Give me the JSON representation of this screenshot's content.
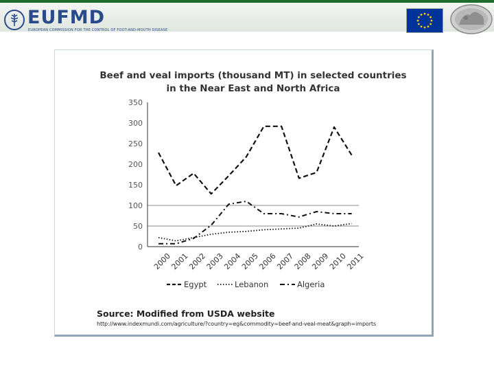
{
  "header": {
    "brand": "EUFMD",
    "brand_subtitle": "EUROPEAN COMMISSION FOR THE CONTROL OF FOOT-AND-MOUTH DISEASE",
    "logo_icon": "fao-wheat-emblem-icon",
    "flag_icon": "eu-flag-icon",
    "coin_icon": "ancient-coin-icon",
    "accent_color": "#1f6b2b",
    "brand_color": "#2a4b8a"
  },
  "chart_data": {
    "type": "line",
    "title": "Beef and veal imports (thousand MT) in selected countries",
    "subtitle": "in the Near East and North Africa",
    "xlabel": "",
    "ylabel": "",
    "categories": [
      "2000",
      "2001",
      "2002",
      "2003",
      "2004",
      "2005",
      "2006",
      "2007",
      "2008",
      "2009",
      "2010",
      "2011"
    ],
    "ylim": [
      0,
      350
    ],
    "yticks": [
      "350",
      "300",
      "250",
      "200",
      "150",
      "100",
      "50",
      "0"
    ],
    "gridlines": [
      50,
      100
    ],
    "legend_position": "bottom",
    "series": [
      {
        "name": "Egypt",
        "style": "dashed",
        "values": [
          228,
          148,
          178,
          128,
          172,
          218,
          292,
          292,
          166,
          180,
          290,
          222
        ]
      },
      {
        "name": "Lebanon",
        "style": "dotted",
        "values": [
          22,
          14,
          22,
          30,
          35,
          37,
          41,
          43,
          45,
          55,
          50,
          56
        ]
      },
      {
        "name": "Algeria",
        "style": "dash-dot",
        "values": [
          7,
          7,
          20,
          52,
          103,
          110,
          80,
          80,
          72,
          85,
          80,
          80
        ]
      }
    ]
  },
  "footer": {
    "source": "Source: Modified from USDA website",
    "url": "http://www.indexmundi.com/agriculture/?country=eg&commodity=beef-and-veal-meat&graph=imports"
  }
}
